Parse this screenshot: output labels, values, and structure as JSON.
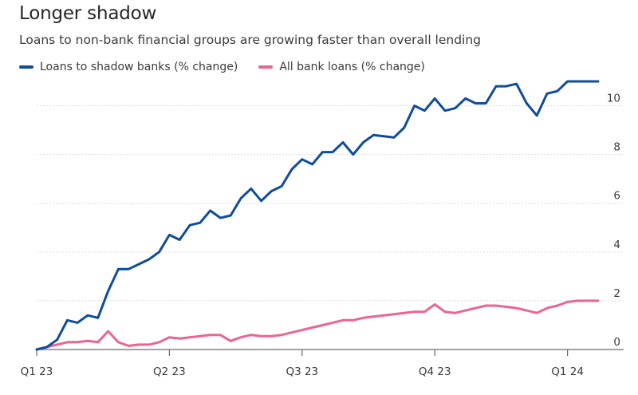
{
  "title": "Longer shadow",
  "subtitle": "Loans to non-bank financial groups are growing faster than overall lending",
  "legend": [
    {
      "label": "Loans to shadow banks (% change)",
      "color": "#0f4c9c"
    },
    {
      "label": "All bank loans (% change)",
      "color": "#ea6590"
    }
  ],
  "chart_data": {
    "type": "line",
    "title": "Longer shadow",
    "subtitle": "Loans to non-bank financial groups are growing faster than overall lending",
    "xlabel": "",
    "ylabel": "",
    "x_ticks": [
      "Q1 23",
      "Q2 23",
      "Q3 23",
      "Q4 23",
      "Q1 24"
    ],
    "x_tick_weeks": [
      0,
      13,
      26,
      39,
      52
    ],
    "xlim": [
      0,
      55
    ],
    "ylim": [
      0,
      11
    ],
    "y_ticks": [
      0,
      2,
      4,
      6,
      8,
      10
    ],
    "grid": "horizontal",
    "legend_position": "top-left",
    "series": [
      {
        "name": "Loans to shadow banks (% change)",
        "color": "#0f4c9c",
        "x": [
          0,
          1,
          2,
          3,
          4,
          5,
          6,
          7,
          8,
          9,
          10,
          11,
          12,
          13,
          14,
          15,
          16,
          17,
          18,
          19,
          20,
          21,
          22,
          23,
          24,
          25,
          26,
          27,
          28,
          29,
          30,
          31,
          32,
          33,
          34,
          35,
          36,
          37,
          38,
          39,
          40,
          41,
          42,
          43,
          44,
          45,
          46,
          47,
          48,
          49,
          50,
          51,
          52,
          53,
          54,
          55
        ],
        "values": [
          0.0,
          0.1,
          0.4,
          1.2,
          1.1,
          1.4,
          1.3,
          2.4,
          3.3,
          3.3,
          3.5,
          3.7,
          4.0,
          4.7,
          4.5,
          5.1,
          5.2,
          5.7,
          5.4,
          5.5,
          6.2,
          6.6,
          6.1,
          6.5,
          6.7,
          7.4,
          7.8,
          7.6,
          8.1,
          8.1,
          8.5,
          8.0,
          8.5,
          8.8,
          8.75,
          8.7,
          9.1,
          10.0,
          9.8,
          10.3,
          9.8,
          9.9,
          10.3,
          10.1,
          10.1,
          10.8,
          10.8,
          10.9,
          10.1,
          9.6,
          10.5,
          10.6,
          11.0,
          11.0,
          11.0,
          11.0
        ]
      },
      {
        "name": "All bank loans (% change)",
        "color": "#ea6590",
        "x": [
          0,
          1,
          2,
          3,
          4,
          5,
          6,
          7,
          8,
          9,
          10,
          11,
          12,
          13,
          14,
          15,
          16,
          17,
          18,
          19,
          20,
          21,
          22,
          23,
          24,
          25,
          26,
          27,
          28,
          29,
          30,
          31,
          32,
          33,
          34,
          35,
          36,
          37,
          38,
          39,
          40,
          41,
          42,
          43,
          44,
          45,
          46,
          47,
          48,
          49,
          50,
          51,
          52,
          53,
          54,
          55
        ],
        "values": [
          0.0,
          0.1,
          0.2,
          0.3,
          0.3,
          0.35,
          0.3,
          0.75,
          0.3,
          0.15,
          0.2,
          0.2,
          0.3,
          0.5,
          0.45,
          0.5,
          0.55,
          0.6,
          0.6,
          0.35,
          0.5,
          0.6,
          0.55,
          0.55,
          0.6,
          0.7,
          0.8,
          0.9,
          1.0,
          1.1,
          1.2,
          1.2,
          1.3,
          1.35,
          1.4,
          1.45,
          1.5,
          1.55,
          1.55,
          1.85,
          1.55,
          1.5,
          1.6,
          1.7,
          1.8,
          1.8,
          1.75,
          1.7,
          1.6,
          1.5,
          1.7,
          1.8,
          1.95,
          2.0,
          2.0,
          2.0
        ]
      }
    ]
  }
}
